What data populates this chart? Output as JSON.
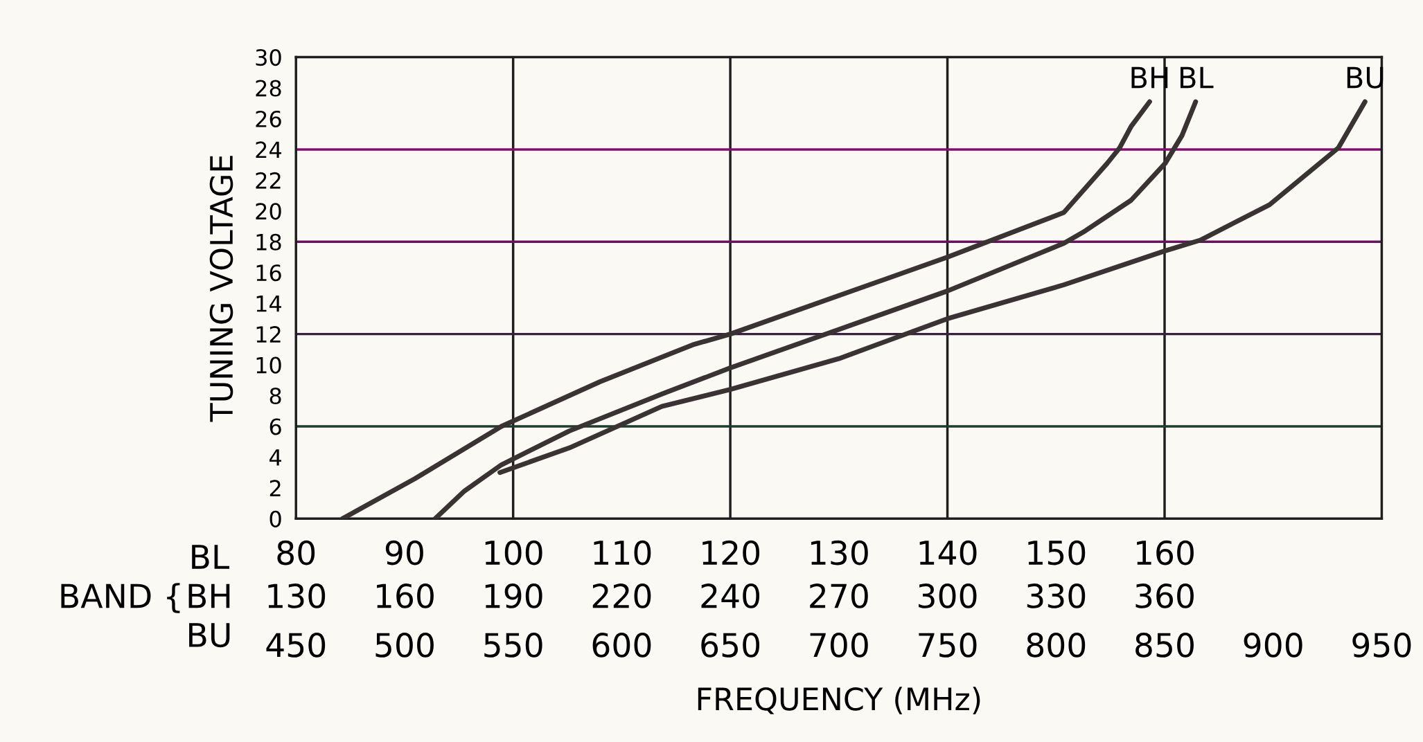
{
  "chart_data": {
    "type": "line",
    "xlabel": "FREQUENCY (MHz)",
    "ylabel": "TUNING VOLTAGE",
    "xlim": [
      450,
      950
    ],
    "ylim": [
      0,
      30
    ],
    "xticks": [
      450,
      500,
      550,
      600,
      650,
      700,
      750,
      800,
      850,
      900,
      950
    ],
    "x2lim": [
      80,
      180
    ],
    "x2ticks": [
      80,
      90,
      100,
      110,
      120,
      130,
      140,
      150,
      160
    ],
    "yticks": [
      0,
      2,
      4,
      6,
      8,
      10,
      12,
      14,
      16,
      18,
      20,
      22,
      24,
      26,
      28,
      30
    ],
    "grid": false,
    "legend": false,
    "marker": "none",
    "line_style": "solid",
    "ref_lines": [
      {
        "axis": "x",
        "value": 550,
        "label": null,
        "color": "#1e1e1e"
      },
      {
        "axis": "x",
        "value": 650,
        "label": null,
        "color": "#1e1e1e"
      },
      {
        "axis": "x",
        "value": 750,
        "label": null,
        "color": "#1e1e1e"
      },
      {
        "axis": "x",
        "value": 850,
        "label": null,
        "color": "#1e1e1e"
      },
      {
        "axis": "y",
        "value": 6,
        "label": null,
        "color": "#1f3a2a"
      },
      {
        "axis": "y",
        "value": 12,
        "label": null,
        "color": "#3a2040"
      },
      {
        "axis": "y",
        "value": 18,
        "label": null,
        "color": "#6a1060"
      },
      {
        "axis": "y",
        "value": 24,
        "label": null,
        "color": "#8a0a70"
      }
    ],
    "annotations": [
      "BAND {",
      "BL\nBH\nBU",
      "130",
      "160",
      "190",
      "220",
      "240",
      "270",
      "300",
      "330",
      "360"
    ],
    "series": [
      {
        "name": "BH",
        "color": "#3a3333",
        "x": [
          471.4,
          504.8,
          544.6,
          590,
          632.7,
          650,
          700,
          750,
          803.6,
          823.6,
          829.3,
          834.6,
          843.1
        ],
        "values": [
          0,
          2.6,
          6.0,
          8.9,
          11.3,
          12.0,
          14.5,
          17.0,
          19.9,
          23.1,
          24.1,
          25.5,
          27.1
        ]
      },
      {
        "name": "BL",
        "color": "#3a3333",
        "x": [
          514.1,
          527.6,
          544.6,
          575.9,
          618.5,
          650,
          700,
          750,
          803.6,
          813.4,
          834.6,
          850.3,
          858,
          864.3
        ],
        "values": [
          0,
          1.8,
          3.5,
          5.7,
          8.1,
          9.8,
          12.3,
          14.8,
          17.9,
          18.7,
          20.7,
          23.1,
          24.9,
          27.1
        ]
      },
      {
        "name": "BU",
        "color": "#3a3333",
        "x": [
          543.9,
          575.9,
          618.5,
          650,
          700,
          750,
          803.6,
          850,
          866.4,
          898.3,
          930,
          942.3
        ],
        "values": [
          3.0,
          4.6,
          7.3,
          8.4,
          10.4,
          13.0,
          15.2,
          17.4,
          18.1,
          20.4,
          24.1,
          27.1
        ]
      }
    ]
  }
}
